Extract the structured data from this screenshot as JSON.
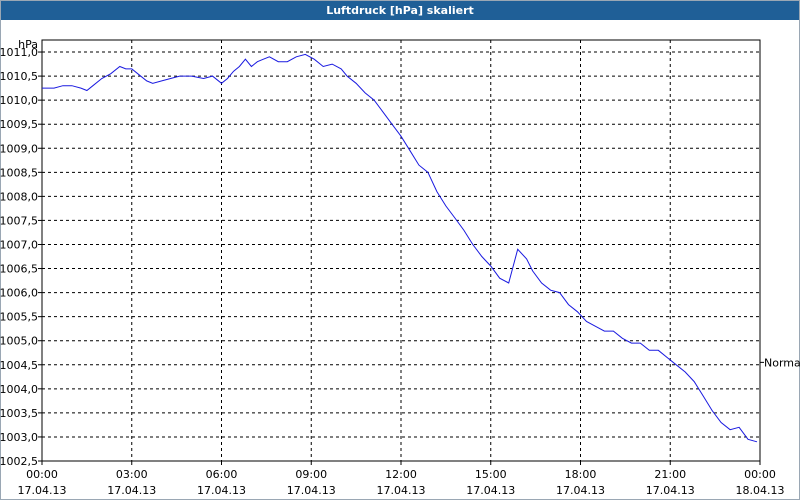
{
  "chart_data": {
    "type": "line",
    "title": "Luftdruck [hPa] skaliert",
    "y_unit_label": "hPa",
    "ylim": [
      1002.5,
      1011.25
    ],
    "yticks": [
      "1011,0",
      "1010,5",
      "1010,0",
      "1009,5",
      "1009,0",
      "1008,5",
      "1008,0",
      "1007,5",
      "1007,0",
      "1006,5",
      "1006,0",
      "1005,5",
      "1005,0",
      "1004,5",
      "1004,0",
      "1003,5",
      "1003,0",
      "1002,5"
    ],
    "ytick_values": [
      1011.0,
      1010.5,
      1010.0,
      1009.5,
      1009.0,
      1008.5,
      1008.0,
      1007.5,
      1007.0,
      1006.5,
      1006.0,
      1005.5,
      1005.0,
      1004.5,
      1004.0,
      1003.5,
      1003.0,
      1002.5
    ],
    "xlim": [
      0,
      24
    ],
    "xticks": [
      {
        "time": "00:00",
        "date": "17.04.13",
        "hour": 0
      },
      {
        "time": "03:00",
        "date": "17.04.13",
        "hour": 3
      },
      {
        "time": "06:00",
        "date": "17.04.13",
        "hour": 6
      },
      {
        "time": "09:00",
        "date": "17.04.13",
        "hour": 9
      },
      {
        "time": "12:00",
        "date": "17.04.13",
        "hour": 12
      },
      {
        "time": "15:00",
        "date": "17.04.13",
        "hour": 15
      },
      {
        "time": "18:00",
        "date": "17.04.13",
        "hour": 18
      },
      {
        "time": "21:00",
        "date": "17.04.13",
        "hour": 21
      },
      {
        "time": "00:00",
        "date": "18.04.13",
        "hour": 24
      }
    ],
    "grid": true,
    "reference_label": "Normal",
    "reference_value": 1004.55,
    "line_color": "#1a1ae0",
    "series": [
      {
        "x": [
          0,
          0.4,
          0.7,
          1.0,
          1.3,
          1.5,
          1.7,
          2.0,
          2.3,
          2.6,
          2.8,
          3.0,
          3.2,
          3.5,
          3.7,
          4.0,
          4.3,
          4.6,
          5.0,
          5.4,
          5.7,
          6.0,
          6.2,
          6.4,
          6.6,
          6.8,
          7.0,
          7.2,
          7.4,
          7.6,
          7.9,
          8.2,
          8.5,
          8.8,
          9.1,
          9.4,
          9.7,
          10.0,
          10.2,
          10.5,
          10.8,
          11.1,
          11.4,
          11.7,
          12.0,
          12.3,
          12.6,
          12.9,
          13.2,
          13.5,
          13.8,
          14.1,
          14.4,
          14.7,
          15.0,
          15.3,
          15.6,
          15.9,
          16.2,
          16.4,
          16.7,
          17.0,
          17.3,
          17.6,
          17.9,
          18.2,
          18.5,
          18.8,
          19.1,
          19.4,
          19.7,
          20.0,
          20.3,
          20.6,
          20.9,
          21.2,
          21.5,
          21.8,
          22.1,
          22.4,
          22.7,
          23.0,
          23.3,
          23.6,
          23.9
        ],
        "y": [
          1010.25,
          1010.25,
          1010.3,
          1010.3,
          1010.25,
          1010.2,
          1010.3,
          1010.45,
          1010.55,
          1010.7,
          1010.65,
          1010.65,
          1010.55,
          1010.4,
          1010.35,
          1010.4,
          1010.45,
          1010.5,
          1010.5,
          1010.45,
          1010.5,
          1010.35,
          1010.45,
          1010.6,
          1010.7,
          1010.85,
          1010.7,
          1010.8,
          1010.85,
          1010.9,
          1010.8,
          1010.8,
          1010.9,
          1010.95,
          1010.85,
          1010.7,
          1010.75,
          1010.65,
          1010.5,
          1010.35,
          1010.15,
          1010.0,
          1009.75,
          1009.5,
          1009.25,
          1008.95,
          1008.65,
          1008.5,
          1008.1,
          1007.8,
          1007.55,
          1007.3,
          1007.0,
          1006.75,
          1006.55,
          1006.3,
          1006.2,
          1006.9,
          1006.7,
          1006.45,
          1006.2,
          1006.05,
          1006.0,
          1005.75,
          1005.6,
          1005.4,
          1005.3,
          1005.2,
          1005.2,
          1005.05,
          1004.95,
          1004.95,
          1004.8,
          1004.8,
          1004.65,
          1004.5,
          1004.35,
          1004.15,
          1003.85,
          1003.55,
          1003.3,
          1003.15,
          1003.2,
          1002.95,
          1002.9
        ]
      }
    ]
  }
}
